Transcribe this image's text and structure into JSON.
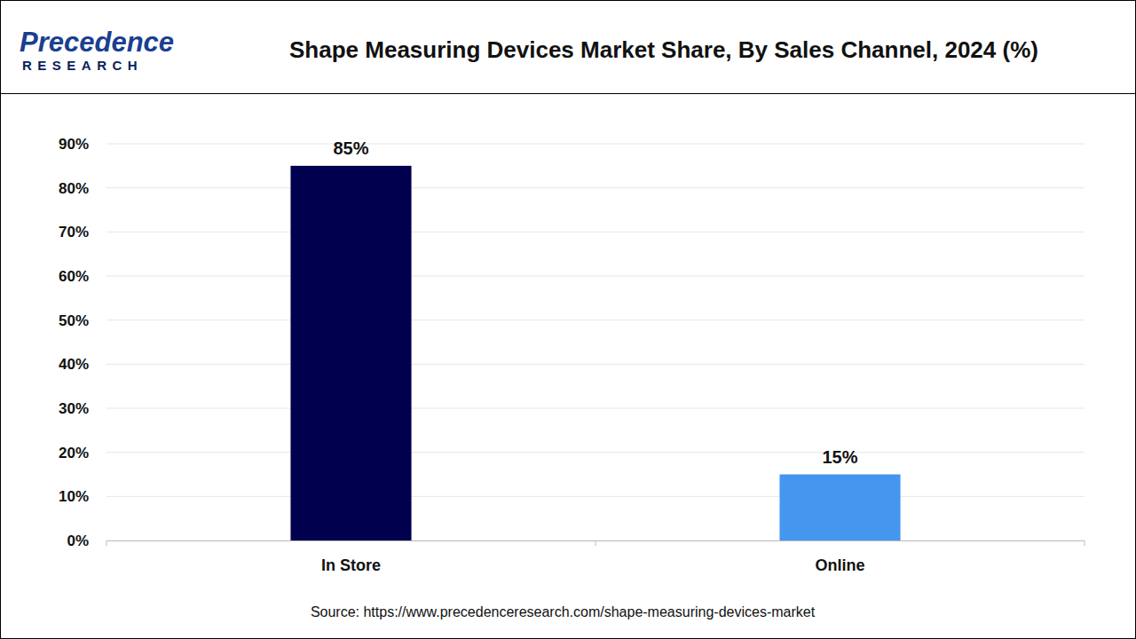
{
  "chart_data": {
    "type": "bar",
    "title": "Shape Measuring Devices Market Share, By Sales Channel, 2024 (%)",
    "logo_text": "Precedence",
    "logo_subtext": "RESEARCH",
    "source": "Source: https://www.precedenceresearch.com/shape-measuring-devices-market",
    "categories": [
      "In Store",
      "Online"
    ],
    "values": [
      85,
      15
    ],
    "value_labels": [
      "85%",
      "15%"
    ],
    "colors": [
      "#00004f",
      "#4596ee"
    ],
    "ylim": [
      0,
      90
    ],
    "yticks": [
      {
        "value": 0,
        "label": "0%"
      },
      {
        "value": 10,
        "label": "10%"
      },
      {
        "value": 20,
        "label": "20%"
      },
      {
        "value": 30,
        "label": "30%"
      },
      {
        "value": 40,
        "label": "40%"
      },
      {
        "value": 50,
        "label": "50%"
      },
      {
        "value": 60,
        "label": "60%"
      },
      {
        "value": 70,
        "label": "70%"
      },
      {
        "value": 80,
        "label": "80%"
      },
      {
        "value": 90,
        "label": "90%"
      }
    ],
    "grid": true,
    "data_labels": true
  }
}
